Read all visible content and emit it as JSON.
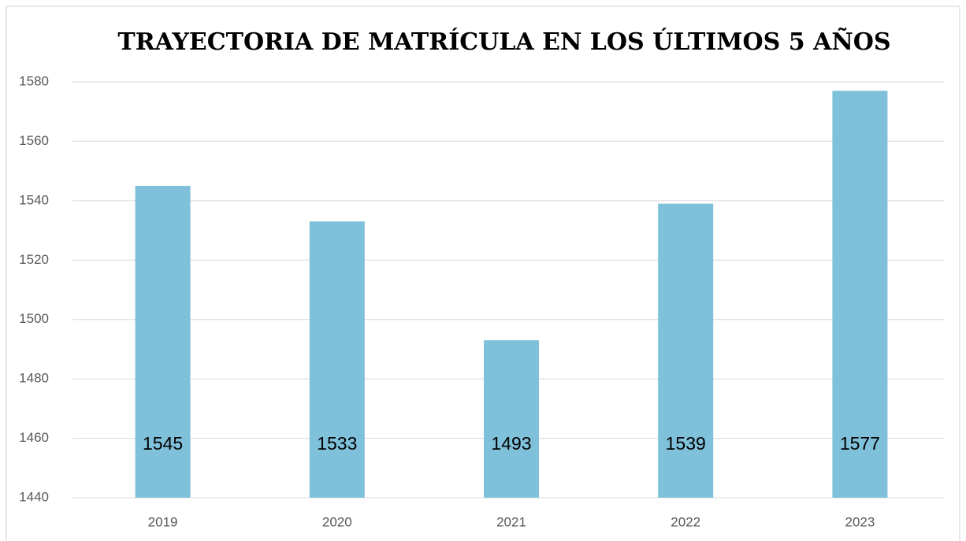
{
  "chart_data": {
    "type": "bar",
    "title": "TRAYECTORIA DE MATRÍCULA EN LOS ÚLTIMOS 5 AÑOS",
    "categories": [
      "2019",
      "2020",
      "2021",
      "2022",
      "2023"
    ],
    "values": [
      1545,
      1533,
      1493,
      1539,
      1577
    ],
    "color": "#7fc0da",
    "ylim": [
      1440,
      1580
    ],
    "yticks": [
      1440,
      1460,
      1480,
      1500,
      1520,
      1540,
      1560,
      1580
    ],
    "grid": true
  }
}
